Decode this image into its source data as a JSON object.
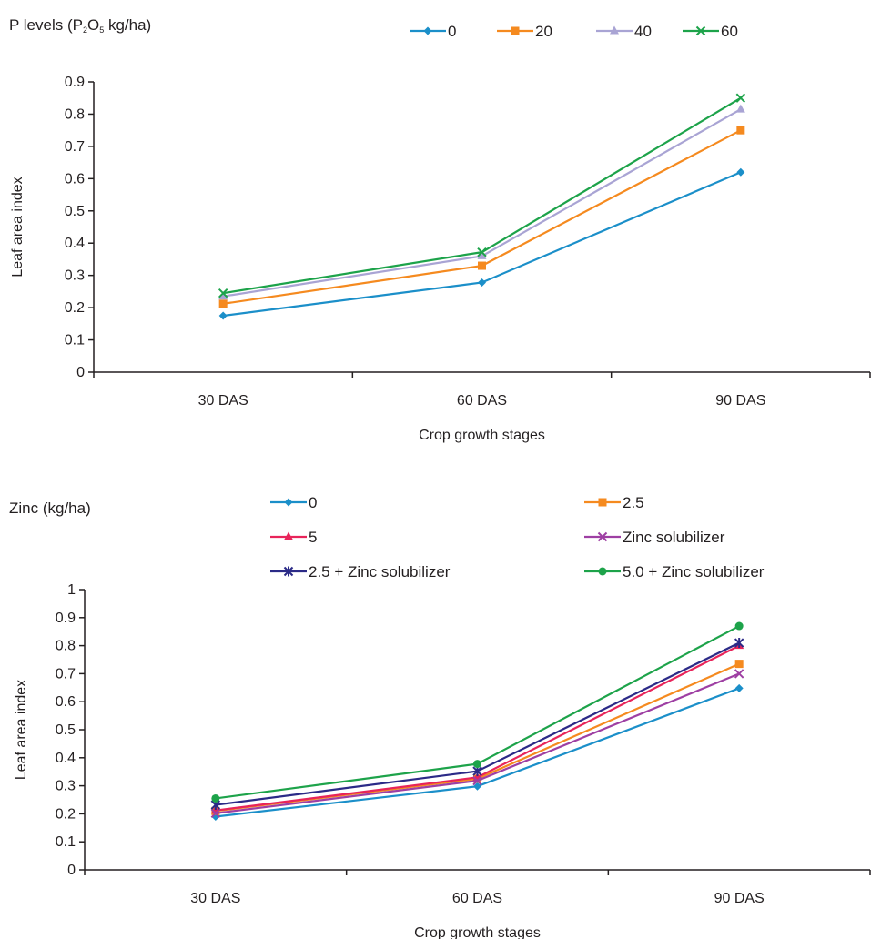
{
  "chart_data": [
    {
      "type": "line",
      "title_parts": [
        "P levels (P",
        "2",
        "O",
        "5",
        " kg/ha)"
      ],
      "xlabel": "Crop growth stages",
      "ylabel": "Leaf area index",
      "categories": [
        "30 DAS",
        "60 DAS",
        "90 DAS"
      ],
      "yticks": [
        "0",
        "0.1",
        "0.2",
        "0.3",
        "0.4",
        "0.5",
        "0.6",
        "0.7",
        "0.8",
        "0.9"
      ],
      "ylim": [
        0,
        0.9
      ],
      "legend_position": "top",
      "series": [
        {
          "name": "0",
          "color": "#1b8fc9",
          "marker": "diamond",
          "values": [
            0.175,
            0.278,
            0.62
          ]
        },
        {
          "name": "20",
          "color": "#f58a1f",
          "marker": "square",
          "values": [
            0.212,
            0.33,
            0.75
          ]
        },
        {
          "name": "40",
          "color": "#a9a4d4",
          "marker": "triangle",
          "values": [
            0.235,
            0.36,
            0.815
          ]
        },
        {
          "name": "60",
          "color": "#1da34a",
          "marker": "x",
          "values": [
            0.245,
            0.372,
            0.85
          ]
        }
      ]
    },
    {
      "type": "line",
      "title": "Zinc (kg/ha)",
      "xlabel": "Crop growth stages",
      "ylabel": "Leaf area index",
      "categories": [
        "30 DAS",
        "60 DAS",
        "90 DAS"
      ],
      "yticks": [
        "0",
        "0.1",
        "0.2",
        "0.3",
        "0.4",
        "0.5",
        "0.6",
        "0.7",
        "0.8",
        "0.9",
        "1"
      ],
      "ylim": [
        0,
        1
      ],
      "legend_position": "top",
      "series": [
        {
          "name": "0",
          "color": "#1b8fc9",
          "marker": "diamond",
          "values": [
            0.19,
            0.298,
            0.648
          ]
        },
        {
          "name": "2.5",
          "color": "#f58a1f",
          "marker": "square",
          "values": [
            0.21,
            0.325,
            0.735
          ]
        },
        {
          "name": "5",
          "color": "#e8245a",
          "marker": "triangle",
          "values": [
            0.212,
            0.33,
            0.8
          ]
        },
        {
          "name": "Zinc solubilizer",
          "color": "#9e3fa3",
          "marker": "x",
          "values": [
            0.202,
            0.318,
            0.7
          ]
        },
        {
          "name": "2.5 + Zinc solubilizer",
          "color": "#2b2a87",
          "marker": "star",
          "values": [
            0.232,
            0.352,
            0.81
          ]
        },
        {
          "name": "5.0 + Zinc solubilizer",
          "color": "#1da34a",
          "marker": "circle",
          "values": [
            0.255,
            0.378,
            0.87
          ]
        }
      ]
    }
  ]
}
